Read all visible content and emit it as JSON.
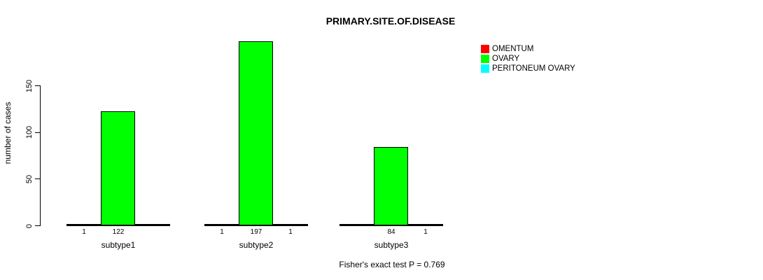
{
  "title": "PRIMARY.SITE.OF.DISEASE",
  "annotation": "Fisher's exact test P = 0.769",
  "chart_data": {
    "type": "bar",
    "title": "PRIMARY.SITE.OF.DISEASE",
    "categories": [
      "subtype1",
      "subtype2",
      "subtype3"
    ],
    "series": [
      {
        "name": "OMENTUM",
        "color": "#ff0000",
        "values": [
          1,
          1,
          0
        ]
      },
      {
        "name": "OVARY",
        "color": "#00ff00",
        "values": [
          122,
          197,
          84
        ]
      },
      {
        "name": "PERITONEUM OVARY",
        "color": "#00ffff",
        "values": [
          0,
          1,
          1
        ]
      }
    ],
    "bar_value_labels": [
      [
        "1",
        "122",
        ""
      ],
      [
        "1",
        "197",
        "1"
      ],
      [
        "",
        "84",
        "1"
      ]
    ],
    "xlabel": "",
    "ylabel": "number of cases",
    "yticks": [
      0,
      50,
      100,
      150
    ],
    "ylim": [
      0,
      200
    ],
    "grid": false,
    "legend_position": "top-right",
    "annotation": "Fisher's exact test P = 0.769",
    "bar_fill_visible": "#00ff00",
    "background": "#ffffff"
  }
}
